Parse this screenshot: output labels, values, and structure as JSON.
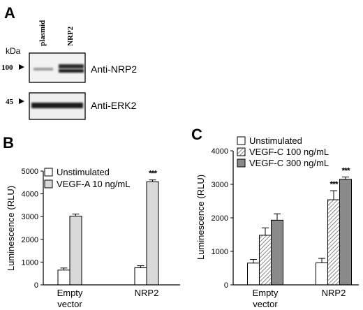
{
  "panels": {
    "a": {
      "letter": "A",
      "lane_labels": [
        "plasmid",
        "NRP2"
      ],
      "kda_label": "kDa",
      "blots": [
        {
          "marker": "100",
          "antibody": "Anti-NRP2"
        },
        {
          "marker": "45",
          "antibody": "Anti-ERK2"
        }
      ]
    },
    "b": {
      "letter": "B"
    },
    "c": {
      "letter": "C"
    }
  },
  "colors": {
    "unstimulated": "#ffffff",
    "vegf_a": "#d9d9d9",
    "vegf_c_100": "#ffffff",
    "vegf_c_300": "#8a8a8a",
    "hatch": "#555555"
  },
  "chart_data": [
    {
      "type": "bar",
      "panel": "B",
      "categories": [
        "Empty vector",
        "NRP2"
      ],
      "ylabel": "Luminescence (RLU)",
      "ylim": [
        0,
        5000
      ],
      "yticks": [
        0,
        1000,
        2000,
        3000,
        4000,
        5000
      ],
      "legend_position": "top-left",
      "series": [
        {
          "name": "Unstimulated",
          "values": [
            650,
            750
          ],
          "errors": [
            90,
            90
          ],
          "fill": "unstimulated"
        },
        {
          "name": "VEGF-A 10 ng/mL",
          "values": [
            3020,
            4530
          ],
          "errors": [
            90,
            80
          ],
          "fill": "vegf_a"
        }
      ],
      "annotations": [
        {
          "series": 1,
          "category": 1,
          "text": "***"
        }
      ]
    },
    {
      "type": "bar",
      "panel": "C",
      "categories": [
        "Empty vector",
        "NRP2"
      ],
      "ylabel": "Luminescence (RLU)",
      "ylim": [
        0,
        4000
      ],
      "yticks": [
        0,
        1000,
        2000,
        3000,
        4000
      ],
      "legend_position": "top-left",
      "series": [
        {
          "name": "Unstimulated",
          "values": [
            650,
            660
          ],
          "errors": [
            110,
            130
          ],
          "fill": "unstimulated"
        },
        {
          "name": "VEGF-C 100 ng/mL",
          "values": [
            1480,
            2540
          ],
          "errors": [
            220,
            270
          ],
          "fill": "vegf_c_100",
          "hatched": true
        },
        {
          "name": "VEGF-C 300 ng/mL",
          "values": [
            1930,
            3150
          ],
          "errors": [
            190,
            70
          ],
          "fill": "vegf_c_300"
        }
      ],
      "annotations": [
        {
          "series": 1,
          "category": 1,
          "text": "***"
        },
        {
          "series": 2,
          "category": 1,
          "text": "***"
        }
      ]
    }
  ]
}
